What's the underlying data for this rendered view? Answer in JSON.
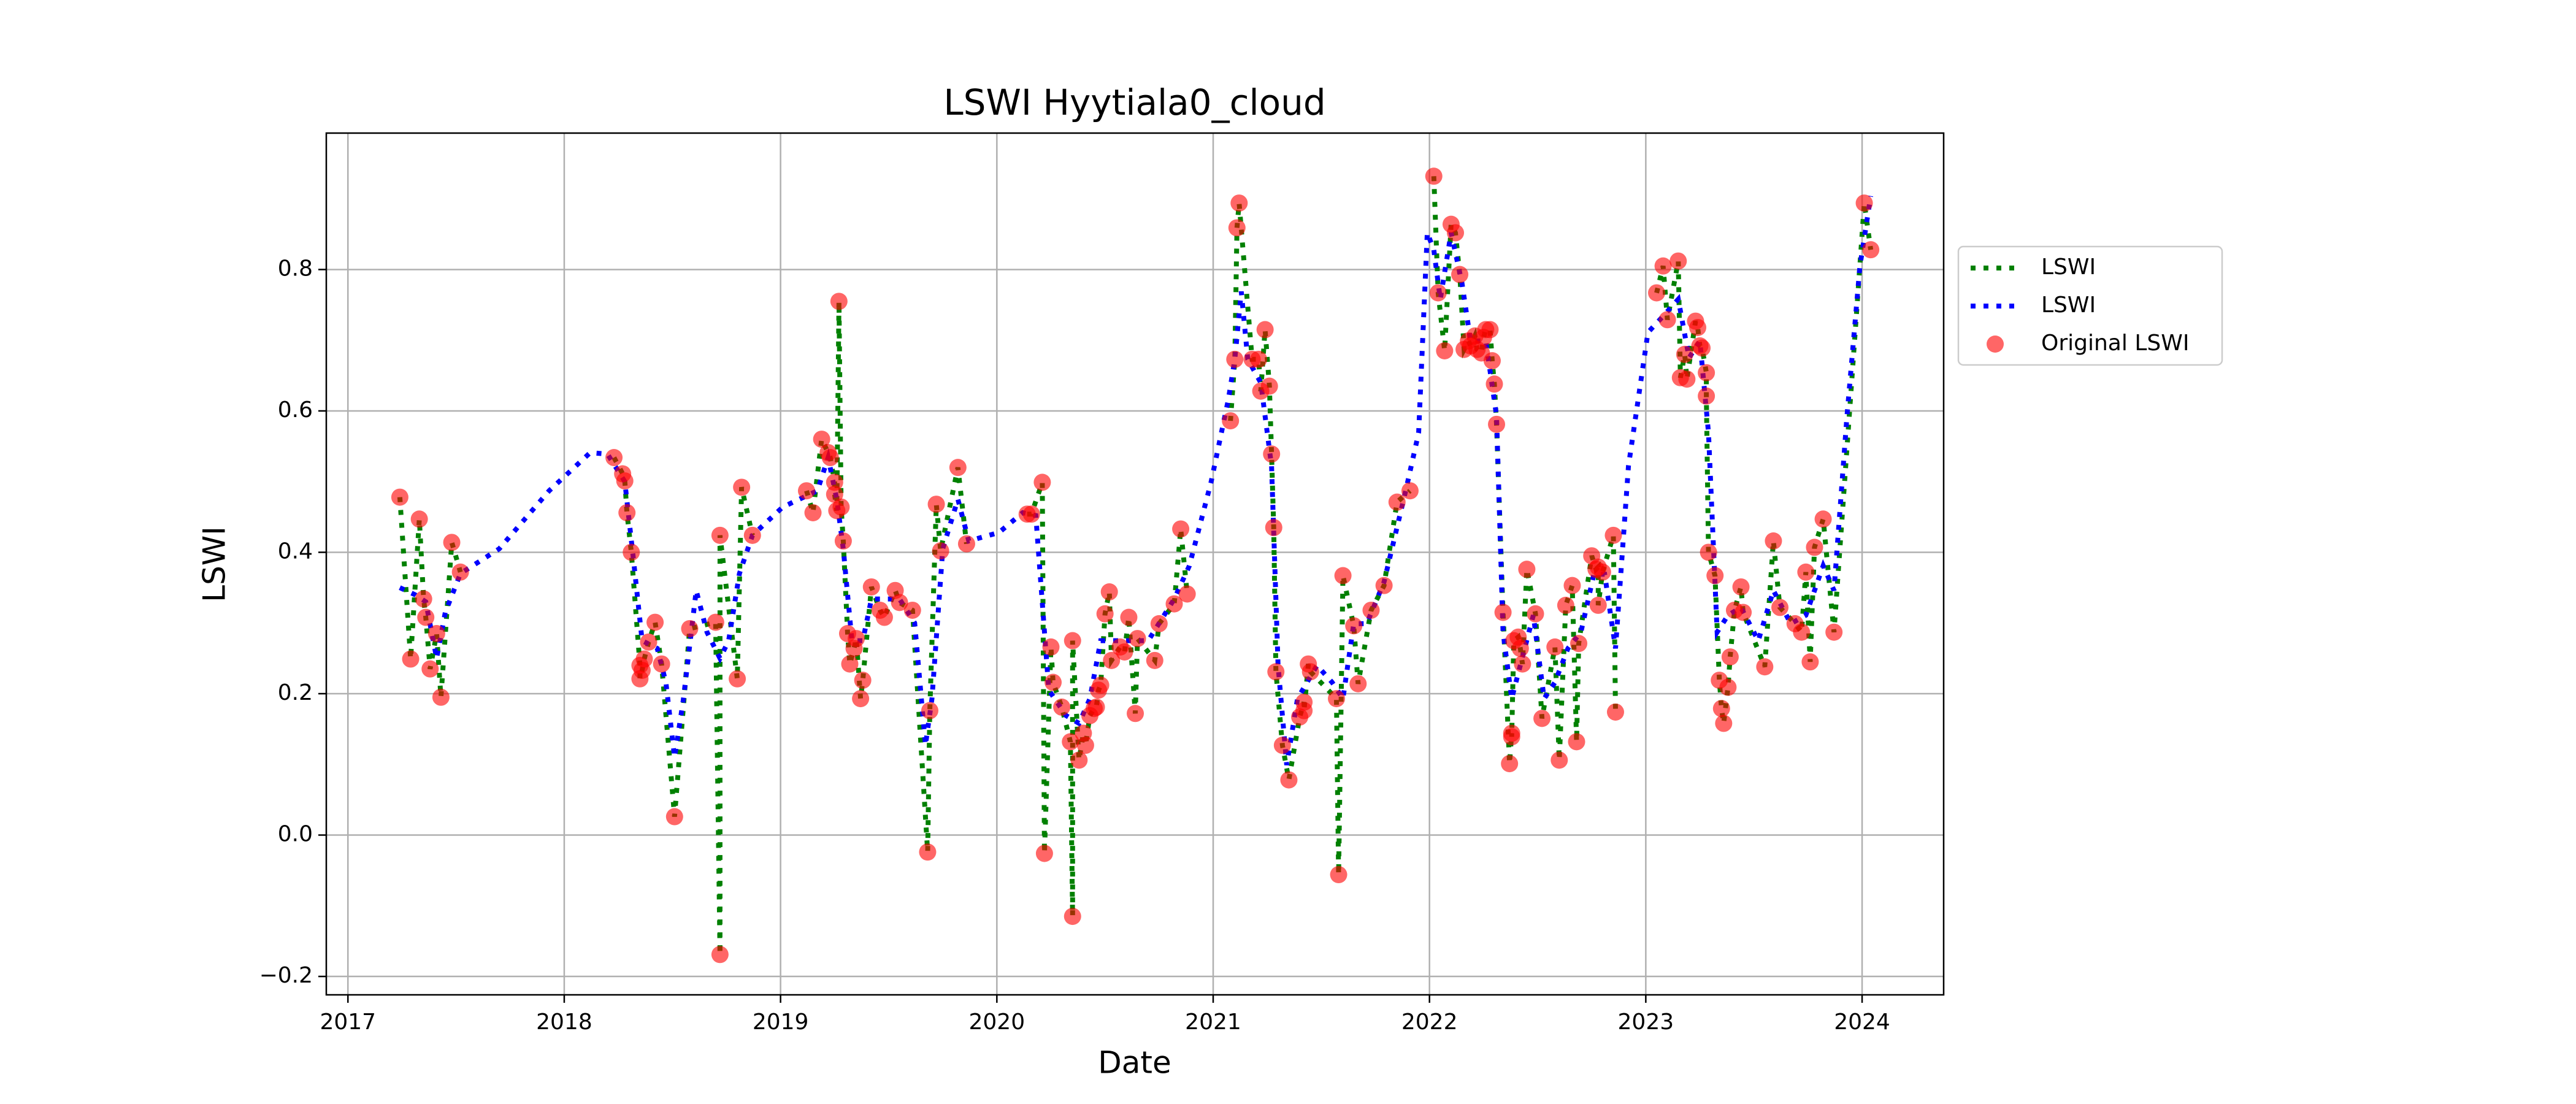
{
  "chart_data": {
    "type": "line",
    "title": "LSWI Hyytiala0_cloud",
    "xlabel": "Date",
    "ylabel": "LSWI",
    "xlim": [
      2016.9,
      2024.377
    ],
    "xticks": [
      2017,
      2018,
      2019,
      2020,
      2021,
      2022,
      2023,
      2024
    ],
    "ylim": [
      -0.226,
      0.993
    ],
    "yticks": [
      {
        "value": -0.2,
        "label": "−0.2"
      },
      {
        "value": 0,
        "label": "0.0"
      },
      0.2,
      0.4,
      0.6,
      0.8
    ],
    "grid": true,
    "legend": "outside-right",
    "series": [
      {
        "name": "LSWI",
        "type": "line",
        "color": "#008000",
        "x": [
          2017.24,
          2017.29,
          2017.33,
          2017.35,
          2017.36,
          2017.38,
          2017.41,
          2017.43,
          2017.48,
          2017.52,
          null,
          2018.23,
          2018.27,
          2018.28,
          2018.29,
          2018.31,
          2018.35,
          2018.35,
          2018.36,
          2018.37,
          2018.39,
          2018.42,
          2018.45,
          2018.51,
          2018.58,
          2018.7,
          2018.72,
          2018.72,
          2018.8,
          2018.82,
          2018.87,
          null,
          2019.12,
          2019.15,
          2019.19,
          2019.22,
          2019.23,
          2019.25,
          2019.25,
          2019.26,
          2019.27,
          2019.28,
          2019.29,
          2019.31,
          2019.32,
          2019.34,
          2019.35,
          2019.37,
          2019.38,
          2019.42,
          2019.46,
          2019.48,
          2019.53,
          2019.55,
          2019.61,
          2019.68,
          2019.69,
          2019.72,
          2019.74,
          2019.82,
          2019.86,
          null,
          2020.14,
          2020.16,
          2020.21,
          2020.22,
          2020.25,
          2020.26,
          2020.3,
          2020.34,
          2020.35,
          2020.35,
          2020.38,
          2020.4,
          2020.41,
          2020.43,
          2020.45,
          2020.46,
          2020.47,
          2020.48,
          2020.5,
          2020.52,
          2020.53,
          2020.57,
          2020.59,
          2020.61,
          2020.64,
          2020.65,
          2020.73,
          2020.75,
          2020.82,
          2020.85,
          2020.88,
          null,
          2021.08,
          2021.1,
          2021.11,
          2021.12,
          2021.18,
          2021.21,
          2021.22,
          2021.24,
          2021.26,
          2021.27,
          2021.28,
          2021.29,
          2021.32,
          2021.35,
          2021.4,
          2021.42,
          2021.42,
          2021.44,
          2021.45,
          2021.57,
          2021.58,
          2021.6,
          2021.65,
          2021.67,
          2021.73,
          2021.79,
          2021.85,
          2021.91,
          null,
          2022.02,
          2022.04,
          2022.07,
          2022.1,
          2022.12,
          2022.14,
          2022.16,
          2022.18,
          2022.19,
          2022.21,
          2022.22,
          2022.24,
          2022.25,
          2022.26,
          2022.28,
          2022.29,
          2022.3,
          2022.31,
          2022.34,
          2022.37,
          2022.38,
          2022.38,
          2022.39,
          2022.41,
          2022.42,
          2022.43,
          2022.45,
          2022.49,
          2022.52,
          2022.58,
          2022.6,
          2022.63,
          2022.66,
          2022.68,
          2022.69,
          2022.75,
          2022.77,
          2022.78,
          2022.78,
          2022.8,
          2022.85,
          2022.86,
          null,
          2023.05,
          2023.08,
          2023.1,
          2023.15,
          2023.16,
          2023.18,
          2023.19,
          2023.23,
          2023.24,
          2023.25,
          2023.26,
          2023.28,
          2023.28,
          2023.29,
          2023.32,
          2023.34,
          2023.35,
          2023.36,
          2023.38,
          2023.39,
          2023.41,
          2023.44,
          2023.45,
          2023.55,
          2023.59,
          2023.62,
          2023.69,
          2023.72,
          2023.74,
          2023.76,
          2023.78,
          2023.82,
          2023.87,
          2024.01,
          2024.04
        ],
        "values": [
          0.478,
          0.249,
          0.447,
          0.334,
          0.308,
          0.235,
          0.285,
          0.195,
          0.414,
          0.372,
          null,
          0.534,
          0.511,
          0.501,
          0.456,
          0.4,
          0.24,
          0.221,
          0.233,
          0.249,
          0.273,
          0.301,
          0.242,
          0.026,
          0.292,
          0.301,
          -0.169,
          0.424,
          0.221,
          0.492,
          0.424,
          null,
          0.487,
          0.456,
          0.56,
          0.541,
          0.534,
          0.499,
          0.482,
          0.459,
          0.755,
          0.464,
          0.416,
          0.285,
          0.242,
          0.264,
          0.278,
          0.193,
          0.219,
          0.351,
          0.318,
          0.308,
          0.346,
          0.329,
          0.318,
          -0.024,
          0.176,
          0.468,
          0.402,
          0.52,
          0.412,
          null,
          0.454,
          0.454,
          0.499,
          -0.026,
          0.266,
          0.216,
          0.181,
          0.132,
          -0.115,
          0.275,
          0.106,
          0.144,
          0.127,
          0.169,
          0.179,
          0.181,
          0.205,
          0.212,
          0.313,
          0.344,
          0.247,
          0.266,
          0.259,
          0.308,
          0.172,
          0.278,
          0.247,
          0.299,
          0.327,
          0.433,
          0.341,
          null,
          0.586,
          0.673,
          0.859,
          0.894,
          0.673,
          0.673,
          0.628,
          0.715,
          0.635,
          0.539,
          0.435,
          0.231,
          0.127,
          0.078,
          0.167,
          0.188,
          0.176,
          0.242,
          0.231,
          0.193,
          -0.056,
          0.367,
          0.296,
          0.214,
          0.318,
          0.353,
          0.471,
          0.487,
          null,
          0.932,
          0.767,
          0.685,
          0.864,
          0.852,
          0.793,
          0.687,
          0.699,
          0.692,
          0.706,
          0.687,
          0.682,
          0.704,
          0.715,
          0.715,
          0.671,
          0.638,
          0.581,
          0.315,
          0.101,
          0.144,
          0.139,
          0.275,
          0.28,
          0.264,
          0.242,
          0.376,
          0.313,
          0.165,
          0.266,
          0.106,
          0.325,
          0.353,
          0.132,
          0.271,
          0.395,
          0.376,
          0.379,
          0.325,
          0.372,
          0.424,
          0.174,
          null,
          0.767,
          0.805,
          0.729,
          0.812,
          0.647,
          0.68,
          0.645,
          0.727,
          0.718,
          0.692,
          0.689,
          0.654,
          0.621,
          0.4,
          0.367,
          0.219,
          0.179,
          0.158,
          0.209,
          0.252,
          0.318,
          0.351,
          0.315,
          0.238,
          0.416,
          0.322,
          0.299,
          0.287,
          0.372,
          0.245,
          0.407,
          0.447,
          0.287,
          0.894,
          0.828
        ]
      },
      {
        "name": "LSWI",
        "type": "line",
        "color": "#0000ff",
        "x": [
          2017.24,
          2017.31,
          2017.36,
          2017.41,
          2017.45,
          2017.52,
          2017.7,
          2017.93,
          2018.12,
          2018.2,
          2018.28,
          2018.32,
          2018.36,
          2018.43,
          2018.47,
          2018.51,
          2018.55,
          2018.61,
          2018.66,
          2018.72,
          2018.76,
          2018.81,
          2018.87,
          2019.01,
          2019.17,
          2019.22,
          2019.26,
          2019.29,
          2019.33,
          2019.38,
          2019.42,
          2019.55,
          2019.62,
          2019.67,
          2019.7,
          2019.75,
          2019.82,
          2019.87,
          2020.01,
          2020.12,
          2020.18,
          2020.24,
          2020.32,
          2020.38,
          2020.43,
          2020.48,
          2020.58,
          2020.7,
          2020.82,
          2020.89,
          2020.99,
          2021.07,
          2021.1,
          2021.13,
          2021.16,
          2021.22,
          2021.27,
          2021.3,
          2021.34,
          2021.39,
          2021.48,
          2021.55,
          2021.6,
          2021.65,
          2021.71,
          2021.79,
          2021.89,
          2021.95,
          2021.99,
          2022.02,
          2022.05,
          2022.1,
          2022.15,
          2022.19,
          2022.26,
          2022.31,
          2022.34,
          2022.38,
          2022.43,
          2022.48,
          2022.53,
          2022.58,
          2022.64,
          2022.7,
          2022.76,
          2022.81,
          2022.86,
          2022.92,
          2023.01,
          2023.08,
          2023.15,
          2023.2,
          2023.25,
          2023.29,
          2023.33,
          2023.38,
          2023.44,
          2023.52,
          2023.59,
          2023.67,
          2023.74,
          2023.82,
          2023.87,
          2023.93,
          2023.99,
          2024.04
        ],
        "values": [
          0.35,
          0.34,
          0.33,
          0.25,
          0.315,
          0.37,
          0.405,
          0.487,
          0.541,
          0.539,
          0.5,
          0.39,
          0.275,
          0.264,
          0.216,
          0.11,
          0.19,
          0.346,
          0.287,
          0.25,
          0.275,
          0.37,
          0.424,
          0.464,
          0.487,
          0.534,
          0.475,
          0.405,
          0.275,
          0.275,
          0.334,
          0.334,
          0.3,
          0.127,
          0.193,
          0.405,
          0.475,
          0.416,
          0.428,
          0.456,
          0.452,
          0.205,
          0.169,
          0.158,
          0.193,
          0.275,
          0.275,
          0.275,
          0.334,
          0.381,
          0.499,
          0.616,
          0.673,
          0.769,
          0.673,
          0.64,
          0.522,
          0.24,
          0.099,
          0.193,
          0.24,
          0.216,
          0.193,
          0.299,
          0.299,
          0.358,
          0.487,
          0.569,
          0.852,
          0.828,
          0.758,
          0.852,
          0.781,
          0.699,
          0.699,
          0.593,
          0.287,
          0.193,
          0.252,
          0.311,
          0.193,
          0.216,
          0.264,
          0.287,
          0.369,
          0.369,
          0.264,
          0.522,
          0.711,
          0.734,
          0.758,
          0.675,
          0.699,
          0.569,
          0.287,
          0.311,
          0.322,
          0.275,
          0.346,
          0.299,
          0.311,
          0.381,
          0.346,
          0.593,
          0.805,
          0.904
        ]
      },
      {
        "name": "Original LSWI",
        "type": "scatter",
        "color": "#ff0000",
        "x": [
          2017.24,
          2017.29,
          2017.33,
          2017.35,
          2017.36,
          2017.38,
          2017.41,
          2017.43,
          2017.48,
          2017.52,
          2018.23,
          2018.27,
          2018.28,
          2018.29,
          2018.31,
          2018.35,
          2018.35,
          2018.36,
          2018.37,
          2018.39,
          2018.42,
          2018.45,
          2018.51,
          2018.58,
          2018.7,
          2018.72,
          2018.72,
          2018.8,
          2018.82,
          2018.87,
          2019.12,
          2019.15,
          2019.19,
          2019.22,
          2019.23,
          2019.25,
          2019.25,
          2019.26,
          2019.27,
          2019.28,
          2019.29,
          2019.31,
          2019.32,
          2019.34,
          2019.35,
          2019.37,
          2019.38,
          2019.42,
          2019.46,
          2019.48,
          2019.53,
          2019.55,
          2019.61,
          2019.68,
          2019.69,
          2019.72,
          2019.74,
          2019.82,
          2019.86,
          2020.14,
          2020.16,
          2020.21,
          2020.22,
          2020.25,
          2020.26,
          2020.3,
          2020.34,
          2020.35,
          2020.35,
          2020.38,
          2020.4,
          2020.41,
          2020.43,
          2020.45,
          2020.46,
          2020.47,
          2020.48,
          2020.5,
          2020.52,
          2020.53,
          2020.57,
          2020.59,
          2020.61,
          2020.64,
          2020.65,
          2020.73,
          2020.75,
          2020.82,
          2020.85,
          2020.88,
          2021.08,
          2021.1,
          2021.11,
          2021.12,
          2021.18,
          2021.21,
          2021.22,
          2021.24,
          2021.26,
          2021.27,
          2021.28,
          2021.29,
          2021.32,
          2021.35,
          2021.4,
          2021.42,
          2021.42,
          2021.44,
          2021.45,
          2021.57,
          2021.58,
          2021.6,
          2021.65,
          2021.67,
          2021.73,
          2021.79,
          2021.85,
          2021.91,
          2022.02,
          2022.04,
          2022.07,
          2022.1,
          2022.12,
          2022.14,
          2022.16,
          2022.18,
          2022.19,
          2022.21,
          2022.22,
          2022.24,
          2022.25,
          2022.26,
          2022.28,
          2022.29,
          2022.3,
          2022.31,
          2022.34,
          2022.37,
          2022.38,
          2022.38,
          2022.39,
          2022.41,
          2022.42,
          2022.43,
          2022.45,
          2022.49,
          2022.52,
          2022.58,
          2022.6,
          2022.63,
          2022.66,
          2022.68,
          2022.69,
          2022.75,
          2022.77,
          2022.78,
          2022.78,
          2022.8,
          2022.85,
          2022.86,
          2023.05,
          2023.08,
          2023.1,
          2023.15,
          2023.16,
          2023.18,
          2023.19,
          2023.23,
          2023.24,
          2023.25,
          2023.26,
          2023.28,
          2023.28,
          2023.29,
          2023.32,
          2023.34,
          2023.35,
          2023.36,
          2023.38,
          2023.39,
          2023.41,
          2023.44,
          2023.45,
          2023.55,
          2023.59,
          2023.62,
          2023.69,
          2023.72,
          2023.74,
          2023.76,
          2023.78,
          2023.82,
          2023.87,
          2024.01,
          2024.04
        ],
        "values": [
          0.478,
          0.249,
          0.447,
          0.334,
          0.308,
          0.235,
          0.285,
          0.195,
          0.414,
          0.372,
          0.534,
          0.511,
          0.501,
          0.456,
          0.4,
          0.24,
          0.221,
          0.233,
          0.249,
          0.273,
          0.301,
          0.242,
          0.026,
          0.292,
          0.301,
          -0.169,
          0.424,
          0.221,
          0.492,
          0.424,
          0.487,
          0.456,
          0.56,
          0.541,
          0.534,
          0.499,
          0.482,
          0.459,
          0.755,
          0.464,
          0.416,
          0.285,
          0.242,
          0.264,
          0.278,
          0.193,
          0.219,
          0.351,
          0.318,
          0.308,
          0.346,
          0.329,
          0.318,
          -0.024,
          0.176,
          0.468,
          0.402,
          0.52,
          0.412,
          0.454,
          0.454,
          0.499,
          -0.026,
          0.266,
          0.216,
          0.181,
          0.132,
          -0.115,
          0.275,
          0.106,
          0.144,
          0.127,
          0.169,
          0.179,
          0.181,
          0.205,
          0.212,
          0.313,
          0.344,
          0.247,
          0.266,
          0.259,
          0.308,
          0.172,
          0.278,
          0.247,
          0.299,
          0.327,
          0.433,
          0.341,
          0.586,
          0.673,
          0.859,
          0.894,
          0.673,
          0.673,
          0.628,
          0.715,
          0.635,
          0.539,
          0.435,
          0.231,
          0.127,
          0.078,
          0.167,
          0.188,
          0.176,
          0.242,
          0.231,
          0.193,
          -0.056,
          0.367,
          0.296,
          0.214,
          0.318,
          0.353,
          0.471,
          0.487,
          0.932,
          0.767,
          0.685,
          0.864,
          0.852,
          0.793,
          0.687,
          0.699,
          0.692,
          0.706,
          0.687,
          0.682,
          0.704,
          0.715,
          0.715,
          0.671,
          0.638,
          0.581,
          0.315,
          0.101,
          0.144,
          0.139,
          0.275,
          0.28,
          0.264,
          0.242,
          0.376,
          0.313,
          0.165,
          0.266,
          0.106,
          0.325,
          0.353,
          0.132,
          0.271,
          0.395,
          0.376,
          0.379,
          0.325,
          0.372,
          0.424,
          0.174,
          0.767,
          0.805,
          0.729,
          0.812,
          0.647,
          0.68,
          0.645,
          0.727,
          0.718,
          0.692,
          0.689,
          0.654,
          0.621,
          0.4,
          0.367,
          0.219,
          0.179,
          0.158,
          0.209,
          0.252,
          0.318,
          0.351,
          0.315,
          0.238,
          0.416,
          0.322,
          0.299,
          0.287,
          0.372,
          0.245,
          0.407,
          0.447,
          0.287,
          0.894,
          0.828
        ]
      }
    ]
  }
}
